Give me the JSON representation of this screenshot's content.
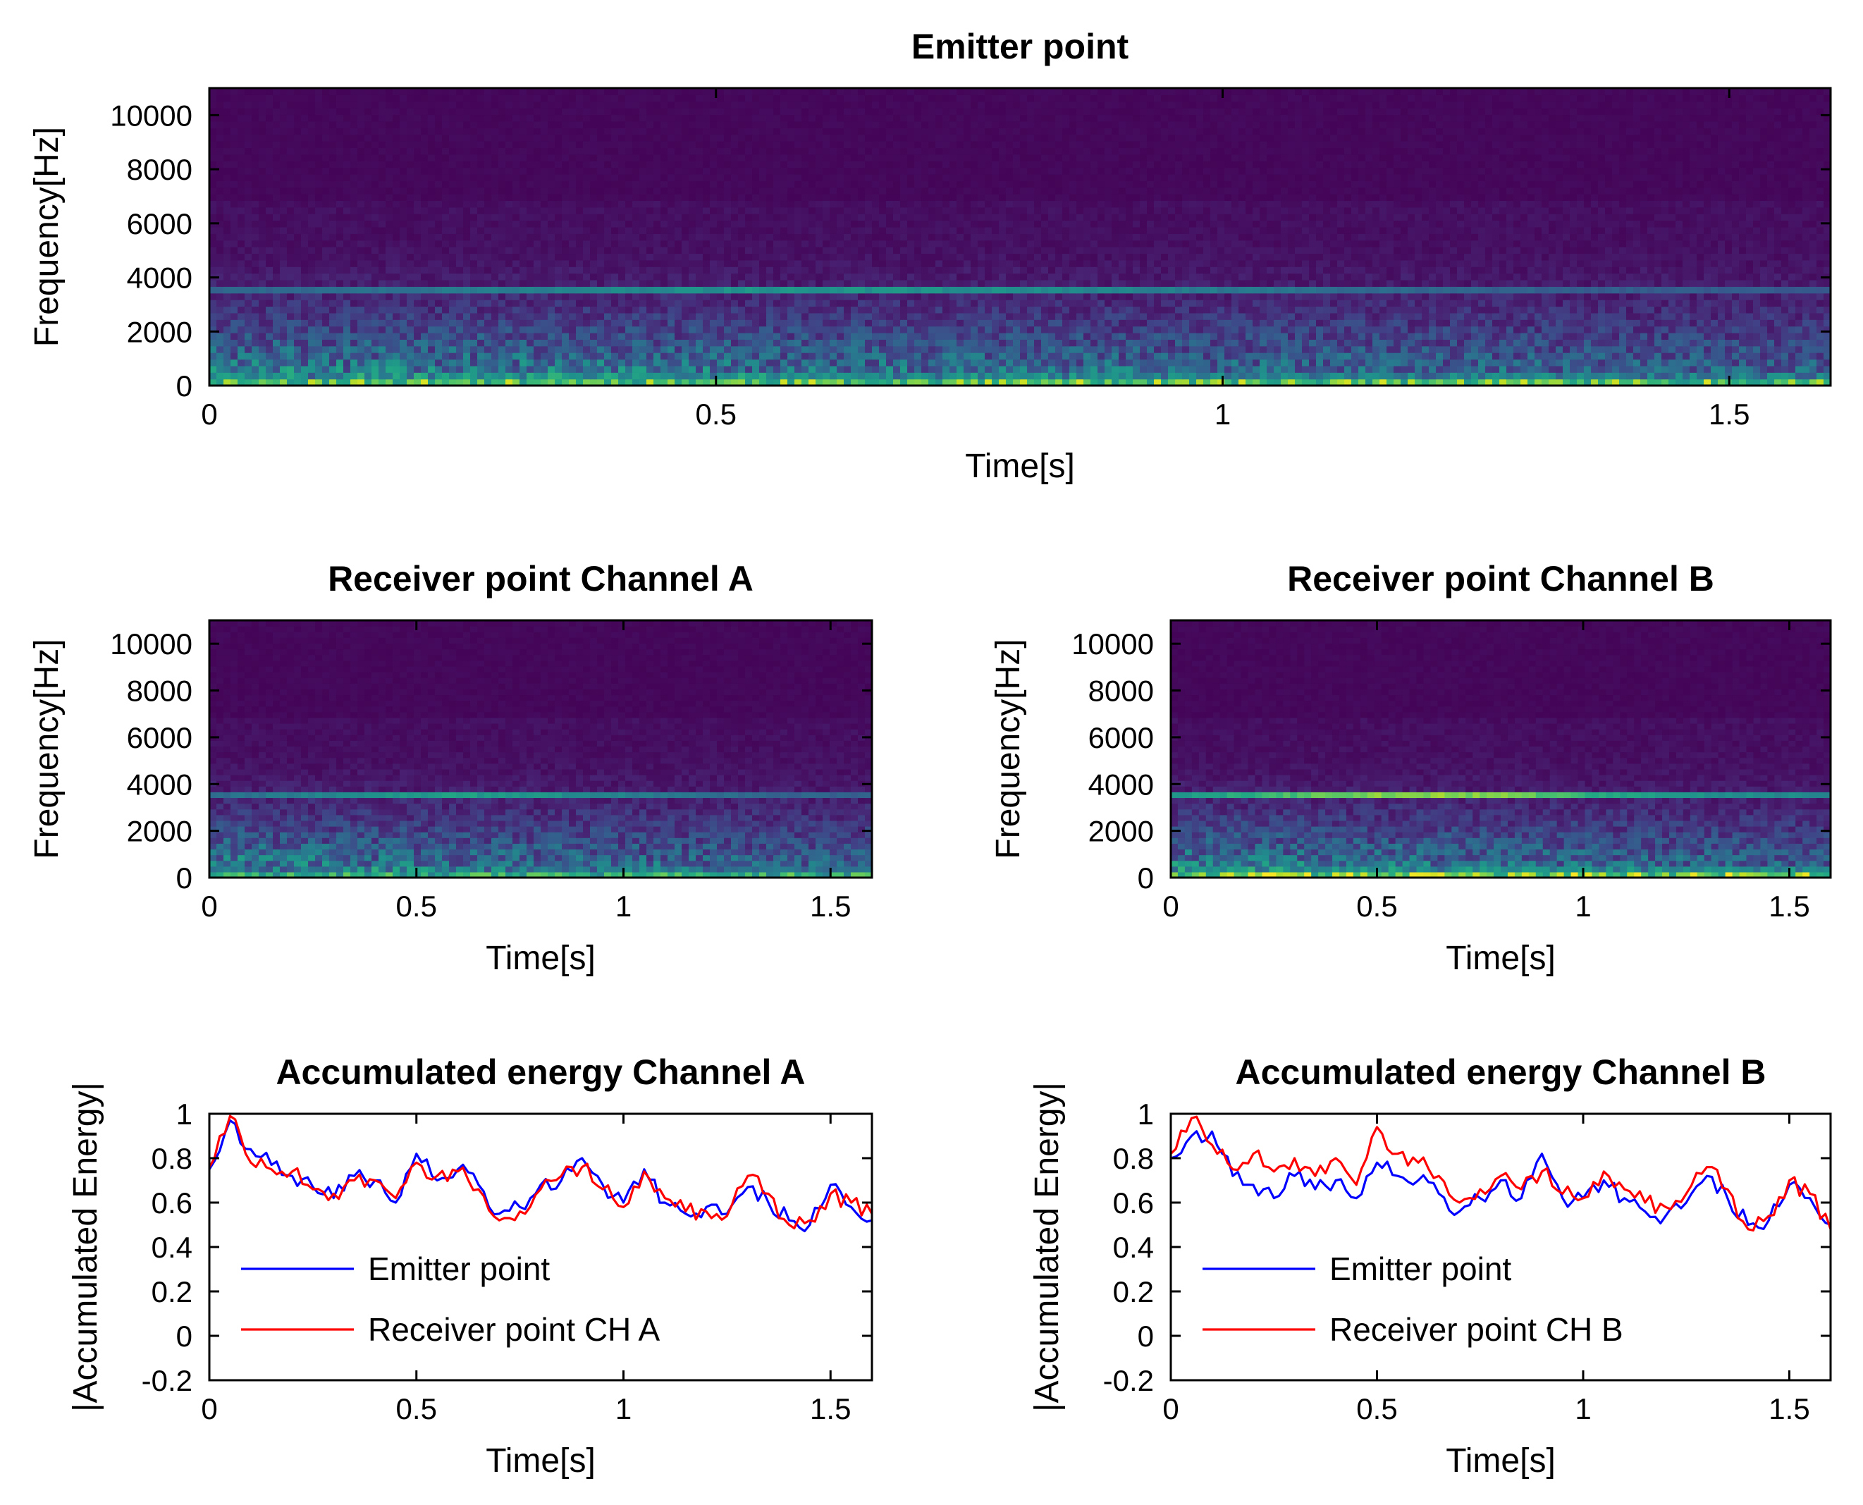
{
  "chart_data": [
    {
      "id": "spec_emitter",
      "type": "heatmap",
      "title": "Emitter point",
      "xlabel": "Time[s]",
      "ylabel": "Frequency[Hz]",
      "xlim": [
        0,
        1.6
      ],
      "ylim": [
        0,
        11000
      ],
      "xticks": [
        0,
        0.5,
        1,
        1.5
      ],
      "xtick_labels": [
        "0",
        "0.5",
        "1",
        "1.5"
      ],
      "yticks": [
        0,
        2000,
        4000,
        6000,
        8000,
        10000
      ],
      "ytick_labels": [
        "0",
        "2000",
        "4000",
        "6000",
        "8000",
        "10000"
      ],
      "colormap": "viridis",
      "tone_hz": 3500,
      "tone_strength": 0.55,
      "low_band_strength": 0.9,
      "seed": 11
    },
    {
      "id": "spec_rx_a",
      "type": "heatmap",
      "title": "Receiver point Channel A",
      "xlabel": "Time[s]",
      "ylabel": "Frequency[Hz]",
      "xlim": [
        0,
        1.6
      ],
      "ylim": [
        0,
        11000
      ],
      "xticks": [
        0,
        0.5,
        1,
        1.5
      ],
      "xtick_labels": [
        "0",
        "0.5",
        "1",
        "1.5"
      ],
      "yticks": [
        0,
        2000,
        4000,
        6000,
        8000,
        10000
      ],
      "ytick_labels": [
        "0",
        "2000",
        "4000",
        "6000",
        "8000",
        "10000"
      ],
      "colormap": "viridis",
      "tone_hz": 3500,
      "tone_strength": 0.6,
      "low_band_strength": 0.75,
      "seed": 23
    },
    {
      "id": "spec_rx_b",
      "type": "heatmap",
      "title": "Receiver point Channel B",
      "xlabel": "Time[s]",
      "ylabel": "Frequency[Hz]",
      "xlim": [
        0,
        1.6
      ],
      "ylim": [
        0,
        11000
      ],
      "xticks": [
        0,
        0.5,
        1,
        1.5
      ],
      "xtick_labels": [
        "0",
        "0.5",
        "1",
        "1.5"
      ],
      "yticks": [
        0,
        2000,
        4000,
        6000,
        8000,
        10000
      ],
      "ytick_labels": [
        "0",
        "2000",
        "4000",
        "6000",
        "8000",
        "10000"
      ],
      "colormap": "viridis",
      "tone_hz": 3500,
      "tone_strength": 0.9,
      "low_band_strength": 0.95,
      "seed": 37
    },
    {
      "id": "energy_a",
      "type": "line",
      "title": "Accumulated energy Channel A",
      "xlabel": "Time[s]",
      "ylabel": "|Accumulated Energy|",
      "xlim": [
        0,
        1.6
      ],
      "ylim": [
        -0.2,
        1
      ],
      "xticks": [
        0,
        0.5,
        1,
        1.5
      ],
      "xtick_labels": [
        "0",
        "0.5",
        "1",
        "1.5"
      ],
      "yticks": [
        -0.2,
        0,
        0.2,
        0.4,
        0.6,
        0.8,
        1
      ],
      "ytick_labels": [
        "-0.2",
        "0",
        "0.2",
        "0.4",
        "0.6",
        "0.8",
        "1"
      ],
      "x": [
        0,
        0.05,
        0.1,
        0.15,
        0.2,
        0.25,
        0.3,
        0.35,
        0.4,
        0.45,
        0.5,
        0.55,
        0.6,
        0.65,
        0.7,
        0.75,
        0.8,
        0.85,
        0.9,
        0.95,
        1.0,
        1.05,
        1.1,
        1.15,
        1.2,
        1.25,
        1.3,
        1.35,
        1.4,
        1.45,
        1.5,
        1.55,
        1.6
      ],
      "series": [
        {
          "name": "Emitter point",
          "color": "#0000ff",
          "values": [
            0.75,
            0.97,
            0.84,
            0.77,
            0.72,
            0.67,
            0.62,
            0.72,
            0.7,
            0.6,
            0.82,
            0.7,
            0.75,
            0.68,
            0.55,
            0.58,
            0.68,
            0.7,
            0.8,
            0.68,
            0.6,
            0.75,
            0.6,
            0.55,
            0.58,
            0.55,
            0.67,
            0.6,
            0.52,
            0.5,
            0.68,
            0.58,
            0.52
          ]
        },
        {
          "name": "Receiver point CH A",
          "color": "#ff0000",
          "values": [
            0.76,
            0.99,
            0.78,
            0.75,
            0.74,
            0.66,
            0.64,
            0.7,
            0.7,
            0.62,
            0.78,
            0.72,
            0.74,
            0.66,
            0.52,
            0.56,
            0.66,
            0.72,
            0.76,
            0.66,
            0.58,
            0.74,
            0.62,
            0.56,
            0.56,
            0.54,
            0.72,
            0.64,
            0.5,
            0.52,
            0.64,
            0.6,
            0.55
          ]
        }
      ],
      "legend_loc": "lower-left"
    },
    {
      "id": "energy_b",
      "type": "line",
      "title": "Accumulated energy Channel B",
      "xlabel": "Time[s]",
      "ylabel": "|Accumulated Energy|",
      "xlim": [
        0,
        1.6
      ],
      "ylim": [
        -0.2,
        1
      ],
      "xticks": [
        0,
        0.5,
        1,
        1.5
      ],
      "xtick_labels": [
        "0",
        "0.5",
        "1",
        "1.5"
      ],
      "yticks": [
        -0.2,
        0,
        0.2,
        0.4,
        0.6,
        0.8,
        1
      ],
      "ytick_labels": [
        "-0.2",
        "0",
        "0.2",
        "0.4",
        "0.6",
        "0.8",
        "1"
      ],
      "x": [
        0,
        0.05,
        0.1,
        0.15,
        0.2,
        0.25,
        0.3,
        0.35,
        0.4,
        0.45,
        0.5,
        0.55,
        0.6,
        0.65,
        0.7,
        0.75,
        0.8,
        0.85,
        0.9,
        0.95,
        1.0,
        1.05,
        1.1,
        1.15,
        1.2,
        1.25,
        1.3,
        1.35,
        1.4,
        1.45,
        1.5,
        1.55,
        1.6
      ],
      "series": [
        {
          "name": "Emitter point",
          "color": "#0000ff",
          "values": [
            0.8,
            0.9,
            0.92,
            0.72,
            0.68,
            0.62,
            0.72,
            0.66,
            0.7,
            0.62,
            0.78,
            0.72,
            0.7,
            0.64,
            0.56,
            0.62,
            0.7,
            0.62,
            0.82,
            0.62,
            0.62,
            0.7,
            0.62,
            0.56,
            0.54,
            0.6,
            0.72,
            0.62,
            0.5,
            0.52,
            0.68,
            0.62,
            0.5
          ]
        },
        {
          "name": "Receiver point CH B",
          "color": "#ff0000",
          "values": [
            0.82,
            0.98,
            0.86,
            0.75,
            0.82,
            0.74,
            0.8,
            0.72,
            0.8,
            0.68,
            0.94,
            0.82,
            0.78,
            0.72,
            0.6,
            0.66,
            0.72,
            0.66,
            0.74,
            0.64,
            0.62,
            0.74,
            0.66,
            0.6,
            0.58,
            0.64,
            0.76,
            0.66,
            0.48,
            0.54,
            0.7,
            0.64,
            0.48
          ]
        }
      ],
      "legend_loc": "lower-left"
    }
  ]
}
